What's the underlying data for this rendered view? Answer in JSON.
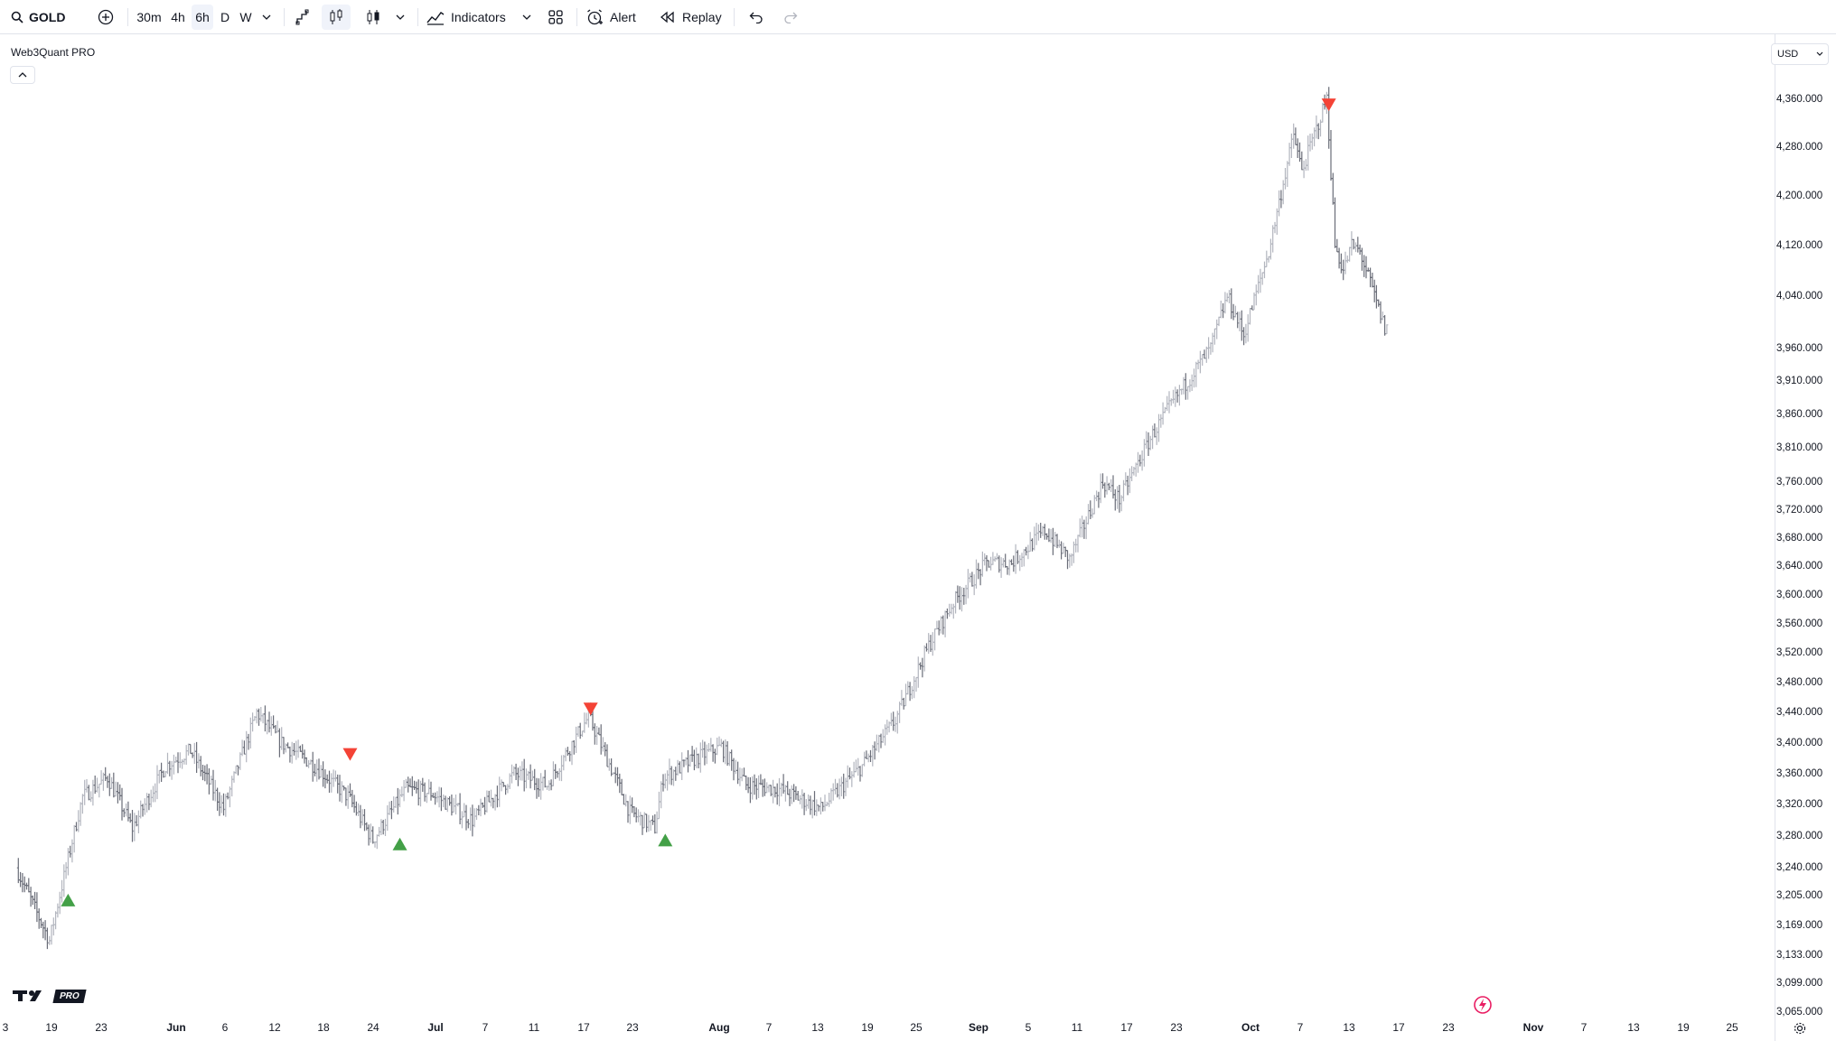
{
  "toolbar": {
    "symbol": "GOLD",
    "intervals": [
      "30m",
      "4h",
      "6h",
      "D",
      "W"
    ],
    "active_interval": "6h",
    "indicators_label": "Indicators",
    "alert_label": "Alert",
    "replay_label": "Replay"
  },
  "indicator": {
    "title": "Web3Quant PRO"
  },
  "currency": "USD",
  "branding": {
    "pro_badge": "PRO"
  },
  "price_axis_labels": [
    "4,360.000",
    "4,280.000",
    "4,200.000",
    "4,120.000",
    "4,040.000",
    "3,960.000",
    "3,910.000",
    "3,860.000",
    "3,810.000",
    "3,760.000",
    "3,720.000",
    "3,680.000",
    "3,640.000",
    "3,600.000",
    "3,560.000",
    "3,520.000",
    "3,480.000",
    "3,440.000",
    "3,400.000",
    "3,360.000",
    "3,320.000",
    "3,280.000",
    "3,240.000",
    "3,205.000",
    "3,169.000",
    "3,133.000",
    "3,099.000",
    "3,065.000"
  ],
  "time_axis_labels": [
    "3",
    "19",
    "23",
    "Jun",
    "6",
    "12",
    "18",
    "24",
    "Jul",
    "7",
    "11",
    "17",
    "23",
    "Aug",
    "7",
    "13",
    "19",
    "25",
    "Sep",
    "5",
    "11",
    "17",
    "23",
    "Oct",
    "7",
    "13",
    "17",
    "23",
    "Nov",
    "7",
    "13",
    "19",
    "25"
  ],
  "colors": {
    "bar_up": "#b2b5be",
    "bar_down": "#6a6d78",
    "buy_signal": "#43a047",
    "sell_signal": "#f44336",
    "accent": "#2962ff"
  },
  "chart_data": {
    "type": "ohlc",
    "series_note": "",
    "y_axis": {
      "min": 3065,
      "max": 4360,
      "scale": "log"
    },
    "anchors": [
      {
        "date": "2025-05-15",
        "price": 3240
      },
      {
        "date": "2025-05-19",
        "price": 3150
      },
      {
        "date": "2025-05-21",
        "price": 3240
      },
      {
        "date": "2025-05-23",
        "price": 3330
      },
      {
        "date": "2025-05-26",
        "price": 3355
      },
      {
        "date": "2025-05-29",
        "price": 3290
      },
      {
        "date": "2025-06-02",
        "price": 3370
      },
      {
        "date": "2025-06-05",
        "price": 3390
      },
      {
        "date": "2025-06-09",
        "price": 3315
      },
      {
        "date": "2025-06-13",
        "price": 3440
      },
      {
        "date": "2025-06-16",
        "price": 3400
      },
      {
        "date": "2025-06-20",
        "price": 3370
      },
      {
        "date": "2025-06-24",
        "price": 3330
      },
      {
        "date": "2025-06-27",
        "price": 3275
      },
      {
        "date": "2025-07-01",
        "price": 3340
      },
      {
        "date": "2025-07-04",
        "price": 3335
      },
      {
        "date": "2025-07-09",
        "price": 3300
      },
      {
        "date": "2025-07-14",
        "price": 3360
      },
      {
        "date": "2025-07-18",
        "price": 3345
      },
      {
        "date": "2025-07-23",
        "price": 3435
      },
      {
        "date": "2025-07-28",
        "price": 3310
      },
      {
        "date": "2025-07-31",
        "price": 3290
      },
      {
        "date": "2025-08-01",
        "price": 3355
      },
      {
        "date": "2025-08-05",
        "price": 3380
      },
      {
        "date": "2025-08-08",
        "price": 3395
      },
      {
        "date": "2025-08-11",
        "price": 3345
      },
      {
        "date": "2025-08-15",
        "price": 3340
      },
      {
        "date": "2025-08-20",
        "price": 3315
      },
      {
        "date": "2025-08-25",
        "price": 3370
      },
      {
        "date": "2025-08-29",
        "price": 3430
      },
      {
        "date": "2025-09-02",
        "price": 3530
      },
      {
        "date": "2025-09-05",
        "price": 3590
      },
      {
        "date": "2025-09-09",
        "price": 3645
      },
      {
        "date": "2025-09-12",
        "price": 3645
      },
      {
        "date": "2025-09-16",
        "price": 3690
      },
      {
        "date": "2025-09-19",
        "price": 3650
      },
      {
        "date": "2025-09-23",
        "price": 3760
      },
      {
        "date": "2025-09-25",
        "price": 3735
      },
      {
        "date": "2025-09-29",
        "price": 3830
      },
      {
        "date": "2025-10-01",
        "price": 3870
      },
      {
        "date": "2025-10-06",
        "price": 3960
      },
      {
        "date": "2025-10-08",
        "price": 4040
      },
      {
        "date": "2025-10-10",
        "price": 3980
      },
      {
        "date": "2025-10-13",
        "price": 4110
      },
      {
        "date": "2025-10-16",
        "price": 4300
      },
      {
        "date": "2025-10-17",
        "price": 4240
      },
      {
        "date": "2025-10-20",
        "price": 4360
      },
      {
        "date": "2025-10-21",
        "price": 4120
      },
      {
        "date": "2025-10-22",
        "price": 4080
      },
      {
        "date": "2025-10-23",
        "price": 4120
      },
      {
        "date": "2025-10-24",
        "price": 4110
      },
      {
        "date": "2025-10-27",
        "price": 3990
      }
    ],
    "signals": [
      {
        "type": "buy",
        "date": "2025-05-21",
        "price": 3200
      },
      {
        "type": "sell",
        "date": "2025-06-24",
        "price": 3385
      },
      {
        "type": "buy",
        "date": "2025-06-30",
        "price": 3270
      },
      {
        "type": "sell",
        "date": "2025-07-23",
        "price": 3445
      },
      {
        "type": "buy",
        "date": "2025-08-01",
        "price": 3275
      },
      {
        "type": "sell",
        "date": "2025-10-20",
        "price": 4350
      }
    ]
  }
}
